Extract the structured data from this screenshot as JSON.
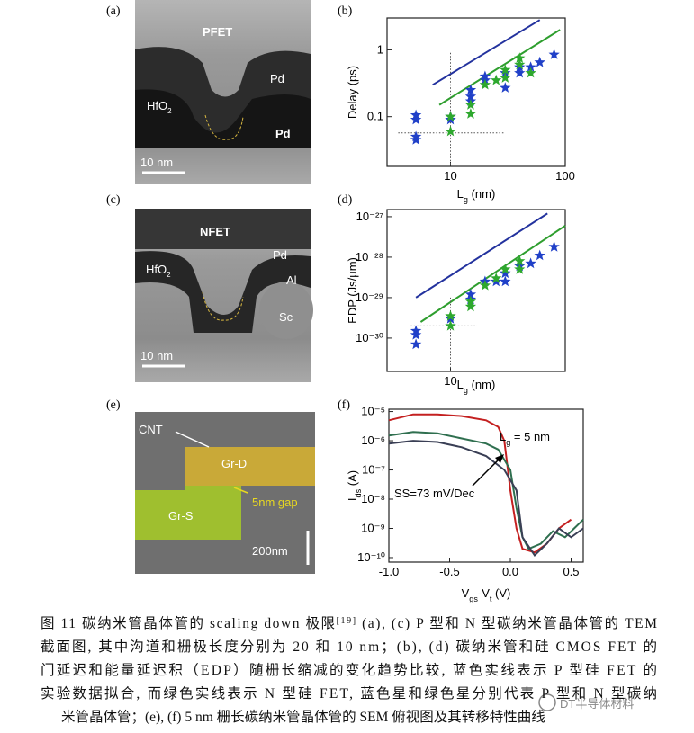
{
  "panels": [
    {
      "label": "(a)",
      "title": "PFET",
      "pd1": "Pd",
      "pd2": "Pd",
      "hfo": {
        "text": "HfO",
        "sub": "2"
      },
      "scale": "10 nm"
    },
    {
      "label": "(c)",
      "title": "NFET",
      "pd": "Pd",
      "hfo": {
        "text": "HfO",
        "sub": "2"
      },
      "al": "Al",
      "sc": "Sc",
      "scale": "10 nm"
    },
    {
      "label": "(e)",
      "cnt": "CNT",
      "grd": "Gr-D",
      "gap": "5nm gap",
      "grs": "Gr-S",
      "scale": "200nm"
    }
  ],
  "chart_data": [
    {
      "type": "scatter",
      "label": "(b)",
      "ylabel": [
        {
          "text": "Delay (ps)"
        }
      ],
      "xlabel": [
        {
          "text": "L"
        },
        {
          "text": "g",
          "sub": true
        },
        {
          "text": " (nm)"
        }
      ],
      "xlog": true,
      "ylog": true,
      "xlim": [
        2.8,
        100
      ],
      "ylim": [
        0.018,
        3
      ],
      "xticks": [
        10,
        100
      ],
      "yticks": [
        0.1,
        1
      ],
      "series": [
        {
          "marker": "line",
          "color": "#23329e",
          "x": [
            7,
            60
          ],
          "values": [
            0.3,
            2.8
          ]
        },
        {
          "marker": "line",
          "color": "#2e9e2e",
          "x": [
            8,
            90
          ],
          "values": [
            0.15,
            2
          ]
        },
        {
          "marker": "dotted",
          "color": "#555555",
          "x": [
            10,
            10
          ],
          "values": [
            0.9,
            0.018
          ]
        },
        {
          "marker": "dotted",
          "color": "#555555",
          "x": [
            3.5,
            30
          ],
          "values": [
            0.057,
            0.057
          ]
        },
        {
          "marker": "star",
          "color": "#2040c8",
          "x": [
            5,
            5,
            5,
            5,
            10,
            10,
            15,
            15,
            15,
            20,
            20,
            30,
            30,
            40,
            40,
            50,
            60,
            80
          ],
          "values": [
            0.09,
            0.105,
            0.045,
            0.05,
            0.1,
            0.09,
            0.2,
            0.25,
            0.17,
            0.35,
            0.4,
            0.45,
            0.27,
            0.55,
            0.45,
            0.55,
            0.65,
            0.85
          ]
        },
        {
          "marker": "star",
          "color": "#2ea82e",
          "x": [
            10,
            10,
            15,
            15,
            20,
            25,
            30,
            30,
            40,
            40,
            50
          ],
          "values": [
            0.06,
            0.1,
            0.11,
            0.15,
            0.3,
            0.35,
            0.5,
            0.38,
            0.75,
            0.6,
            0.45
          ]
        }
      ]
    },
    {
      "type": "scatter",
      "label": "(d)",
      "ylabel": [
        {
          "text": "EDP (Js/μm)"
        }
      ],
      "xlabel": [
        {
          "text": "L"
        },
        {
          "text": "g",
          "sub": true
        },
        {
          "text": " (nm)"
        }
      ],
      "xlog": true,
      "ylog": true,
      "xlim": [
        2.8,
        100
      ],
      "ylim": [
        1.5e-31,
        1.5e-27
      ],
      "xticks": [
        10
      ],
      "yticks": [
        {
          "value": 1e-30,
          "label": "10⁻³⁰"
        },
        {
          "value": 1e-29,
          "label": "10⁻²⁹"
        },
        {
          "value": 1e-28,
          "label": "10⁻²⁸"
        },
        {
          "value": 1e-27,
          "label": "10⁻²⁷"
        }
      ],
      "series": [
        {
          "marker": "line",
          "color": "#23329e",
          "x": [
            5,
            70
          ],
          "values": [
            1e-29,
            1.2e-27
          ]
        },
        {
          "marker": "line",
          "color": "#2e9e2e",
          "x": [
            5.5,
            100
          ],
          "values": [
            2.5e-30,
            6e-28
          ]
        },
        {
          "marker": "dotted",
          "color": "#555555",
          "x": [
            10,
            10
          ],
          "values": [
            1e-29,
            1.5e-31
          ]
        },
        {
          "marker": "dotted",
          "color": "#555555",
          "x": [
            4.5,
            17
          ],
          "values": [
            2e-30,
            2e-30
          ]
        },
        {
          "marker": "star",
          "color": "#2040c8",
          "x": [
            5,
            5,
            5,
            10,
            15,
            15,
            20,
            25,
            30,
            30,
            40,
            50,
            60,
            80
          ],
          "values": [
            1.5e-30,
            1.2e-30,
            7e-31,
            3e-30,
            1.2e-29,
            9e-30,
            2.5e-29,
            2.5e-29,
            4e-29,
            2.5e-29,
            6e-29,
            7e-29,
            1.1e-28,
            1.8e-28
          ]
        },
        {
          "marker": "star",
          "color": "#2ea82e",
          "x": [
            10,
            10,
            15,
            15,
            20,
            25,
            30,
            40,
            40
          ],
          "values": [
            3.5e-30,
            2e-30,
            6e-30,
            8e-30,
            2e-29,
            3e-29,
            5e-29,
            8e-29,
            5e-29
          ]
        }
      ]
    },
    {
      "type": "line",
      "label": "(f)",
      "ylabel": [
        {
          "text": "I"
        },
        {
          "text": "ds",
          "sub": true
        },
        {
          "text": " (A)"
        }
      ],
      "xlabel": [
        {
          "text": "V"
        },
        {
          "text": "gs",
          "sub": true
        },
        {
          "text": "-V"
        },
        {
          "text": "t",
          "sub": true
        },
        {
          "text": " (V)"
        }
      ],
      "xlog": false,
      "ylog": true,
      "xlim": [
        -1,
        0.6
      ],
      "ylim": [
        7e-11,
        1.2e-05
      ],
      "xticks": [
        {
          "value": -1,
          "label": "-1.0"
        },
        -0.5,
        {
          "value": 0,
          "label": "0.0"
        },
        0.5
      ],
      "yticks": [
        {
          "value": 1e-10,
          "label": "10⁻¹⁰"
        },
        {
          "value": 1e-09,
          "label": "10⁻⁹"
        },
        {
          "value": 1e-08,
          "label": "10⁻⁸"
        },
        {
          "value": 1e-07,
          "label": "10⁻⁷"
        },
        {
          "value": 1e-06,
          "label": "10⁻⁶"
        },
        {
          "value": 1e-05,
          "label": "10⁻⁵"
        }
      ],
      "annotations": [
        [
          {
            "text": "L"
          },
          {
            "text": "g",
            "sub": true
          },
          {
            "text": " = 5 nm"
          }
        ],
        [
          {
            "text": "SS=73 mV/Dec"
          }
        ]
      ],
      "series": [
        {
          "marker": "line",
          "color": "#c42020",
          "x": [
            -1,
            -0.8,
            -0.6,
            -0.4,
            -0.2,
            -0.1,
            -0.05,
            0,
            0.05,
            0.1,
            0.2,
            0.3,
            0.4,
            0.5
          ],
          "values": [
            5e-06,
            8e-06,
            8e-06,
            7e-06,
            5e-06,
            3e-06,
            1e-06,
            2e-08,
            1e-09,
            2e-10,
            1.5e-10,
            3e-10,
            1e-09,
            2e-09
          ]
        },
        {
          "marker": "line",
          "color": "#2f6f4f",
          "x": [
            -1,
            -0.8,
            -0.6,
            -0.4,
            -0.2,
            -0.1,
            0,
            0.05,
            0.1,
            0.15,
            0.25,
            0.35,
            0.45,
            0.6
          ],
          "values": [
            1.5e-06,
            2e-06,
            1.8e-06,
            1.2e-06,
            8e-07,
            5e-07,
            1e-07,
            5e-09,
            5e-10,
            2e-10,
            3e-10,
            8e-10,
            5e-10,
            2e-09
          ]
        },
        {
          "marker": "line",
          "color": "#3a3f55",
          "x": [
            -1,
            -0.8,
            -0.6,
            -0.4,
            -0.2,
            -0.05,
            0.05,
            0.1,
            0.2,
            0.3,
            0.4,
            0.5,
            0.6
          ],
          "values": [
            8e-07,
            1e-06,
            9e-07,
            6e-07,
            3e-07,
            1e-07,
            2e-08,
            5e-10,
            1.2e-10,
            3e-10,
            1e-09,
            5e-10,
            1e-09
          ]
        }
      ]
    }
  ],
  "caption": [
    [
      {
        "text": "图 11  碳纳米管晶体管的 scaling down 极限"
      },
      {
        "text": "[19]",
        "sup": true
      },
      {
        "text": " (a), (c) P 型和 N 型碳纳米管晶体管的 TEM"
      }
    ],
    [
      {
        "text": "截面图, 其中沟道和栅极长度分别为 20 和 10 nm；(b), (d)  碳纳米管和硅 CMOS FET 的"
      }
    ],
    [
      {
        "text": "门延迟和能量延迟积（EDP）随栅长缩减的变化趋势比较, 蓝色实线表示 P 型硅 FET 的"
      }
    ],
    [
      {
        "text": "实验数据拟合, 而绿色实线表示 N 型硅 FET, 蓝色星和绿色星分别代表 P 型和 N 型碳纳"
      }
    ],
    [
      {
        "text": "米管晶体管；(e), (f) 5 nm 栅长碳纳米管晶体管的 SEM 俯视图及其转移特性曲线"
      }
    ]
  ],
  "watermark": "DT半导体材料"
}
